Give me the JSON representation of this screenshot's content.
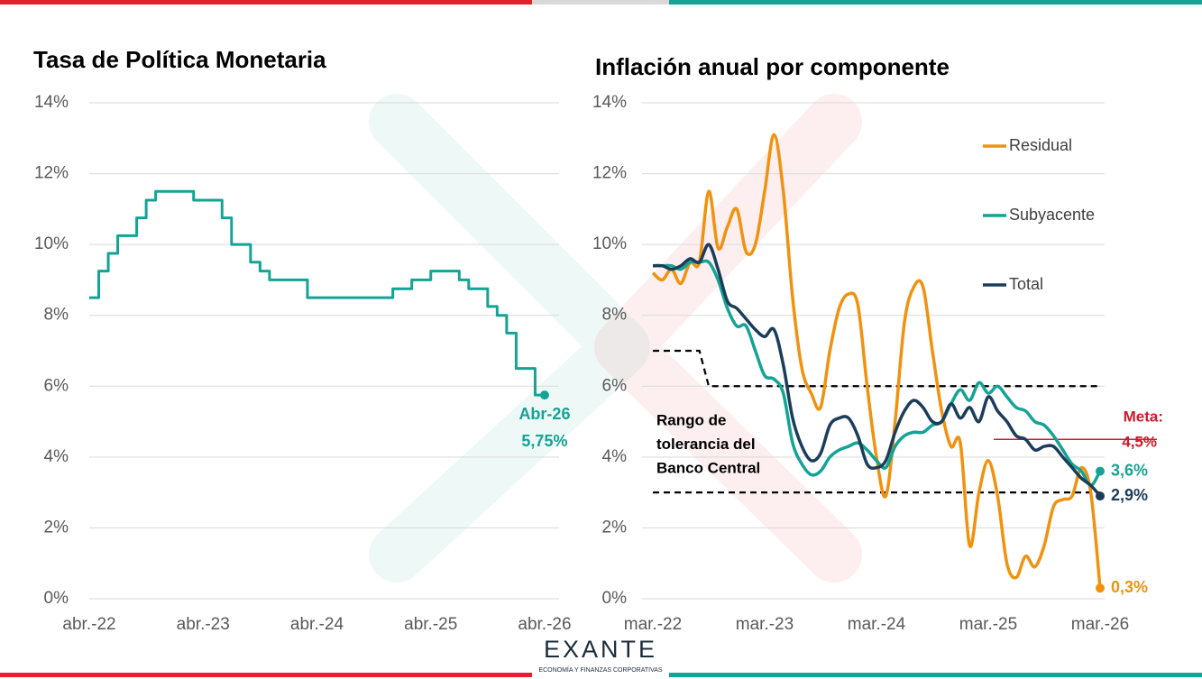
{
  "chart_data": [
    {
      "type": "line",
      "step": true,
      "title": "Tasa de Política Monetaria",
      "categories": [
        "abr.-22",
        null,
        null,
        null,
        null,
        null,
        null,
        null,
        null,
        null,
        null,
        null,
        "abr.-23",
        null,
        null,
        null,
        null,
        null,
        null,
        null,
        null,
        null,
        null,
        null,
        "abr.-24",
        null,
        null,
        null,
        null,
        null,
        null,
        null,
        null,
        null,
        null,
        null,
        "abr.-25",
        null,
        null,
        null,
        null,
        null,
        null,
        null,
        null,
        null,
        null,
        null,
        "abr.-26"
      ],
      "values": [
        8.5,
        9.25,
        9.75,
        10.25,
        10.25,
        10.75,
        11.25,
        11.5,
        11.5,
        11.5,
        11.5,
        11.25,
        11.25,
        11.25,
        10.75,
        10.0,
        10.0,
        9.5,
        9.25,
        9.0,
        9.0,
        9.0,
        9.0,
        8.5,
        8.5,
        8.5,
        8.5,
        8.5,
        8.5,
        8.5,
        8.5,
        8.5,
        8.75,
        8.75,
        9.0,
        9.0,
        9.25,
        9.25,
        9.25,
        9.0,
        8.75,
        8.75,
        8.25,
        8.0,
        7.5,
        6.5,
        6.5,
        5.75,
        5.75
      ],
      "value_labels": [
        null,
        null,
        null,
        null,
        null,
        null,
        null,
        null,
        null,
        null,
        null,
        null,
        null,
        null,
        null,
        null,
        null,
        null,
        null,
        null,
        null,
        null,
        null,
        null,
        null,
        null,
        null,
        null,
        null,
        null,
        null,
        null,
        null,
        null,
        null,
        null,
        null,
        null,
        null,
        null,
        null,
        null,
        null,
        null,
        null,
        null,
        null,
        null,
        "5,75%"
      ],
      "annotation": "Abr-26",
      "color": "#14a394",
      "ylim": [
        0,
        14
      ],
      "yticks": [
        {
          "value": 0,
          "label": "0%"
        },
        {
          "value": 2,
          "label": "2%"
        },
        {
          "value": 4,
          "label": "4%"
        },
        {
          "value": 6,
          "label": "6%"
        },
        {
          "value": 8,
          "label": "8%"
        },
        {
          "value": 10,
          "label": "10%"
        },
        {
          "value": 12,
          "label": "12%"
        },
        {
          "value": 14,
          "label": "14%"
        }
      ],
      "grid": true
    },
    {
      "type": "line",
      "title": "Inflación anual por componente",
      "categories": [
        "mar.-22",
        null,
        null,
        null,
        null,
        null,
        null,
        null,
        null,
        null,
        null,
        null,
        "mar.-23",
        null,
        null,
        null,
        null,
        null,
        null,
        null,
        null,
        null,
        null,
        null,
        "mar.-24",
        null,
        null,
        null,
        null,
        null,
        null,
        null,
        null,
        null,
        null,
        null,
        "mar.-25",
        null,
        null,
        null,
        null,
        null,
        null,
        null,
        null,
        null,
        null,
        null,
        "mar.-26"
      ],
      "series": [
        {
          "name": "Residual",
          "color": "#f0920f",
          "values": [
            9.2,
            9.0,
            9.3,
            8.9,
            9.5,
            9.5,
            11.5,
            9.9,
            10.5,
            11.0,
            9.8,
            10.0,
            11.5,
            13.1,
            11.5,
            8.5,
            6.5,
            5.8,
            5.4,
            7.0,
            8.2,
            8.6,
            8.3,
            6.0,
            4.0,
            2.9,
            5.0,
            7.8,
            8.8,
            8.8,
            7.0,
            5.3,
            4.3,
            4.4,
            1.5,
            3.0,
            3.9,
            2.9,
            1.0,
            0.6,
            1.2,
            0.9,
            1.5,
            2.6,
            2.8,
            2.9,
            3.7,
            3.0,
            0.3
          ],
          "value_labels": [
            null,
            null,
            null,
            null,
            null,
            null,
            null,
            null,
            null,
            null,
            null,
            null,
            null,
            null,
            null,
            null,
            null,
            null,
            null,
            null,
            null,
            null,
            null,
            null,
            null,
            null,
            null,
            null,
            null,
            null,
            null,
            null,
            null,
            null,
            null,
            null,
            null,
            null,
            null,
            null,
            null,
            null,
            null,
            null,
            null,
            null,
            null,
            null,
            "0,3%"
          ]
        },
        {
          "name": "Subyacente",
          "color": "#14a394",
          "values": [
            9.4,
            9.4,
            9.4,
            9.3,
            9.5,
            9.5,
            9.5,
            9.0,
            8.2,
            7.7,
            7.7,
            7.0,
            6.3,
            6.2,
            5.8,
            4.4,
            3.8,
            3.5,
            3.6,
            4.0,
            4.2,
            4.3,
            4.4,
            4.2,
            3.9,
            3.7,
            4.3,
            4.6,
            4.7,
            4.7,
            4.9,
            5.0,
            5.5,
            5.9,
            5.6,
            6.1,
            5.8,
            6.0,
            5.7,
            5.4,
            5.3,
            5.0,
            4.9,
            4.6,
            4.2,
            3.8,
            3.6,
            3.2,
            3.6
          ],
          "value_labels": [
            null,
            null,
            null,
            null,
            null,
            null,
            null,
            null,
            null,
            null,
            null,
            null,
            null,
            null,
            null,
            null,
            null,
            null,
            null,
            null,
            null,
            null,
            null,
            null,
            null,
            null,
            null,
            null,
            null,
            null,
            null,
            null,
            null,
            null,
            null,
            null,
            null,
            null,
            null,
            null,
            null,
            null,
            null,
            null,
            null,
            null,
            null,
            null,
            "3,6%"
          ]
        },
        {
          "name": "Total",
          "color": "#1c3d5a",
          "values": [
            9.4,
            9.4,
            9.3,
            9.4,
            9.6,
            9.5,
            10.0,
            9.3,
            8.4,
            8.2,
            7.9,
            7.6,
            7.4,
            7.6,
            6.6,
            5.1,
            4.3,
            3.9,
            4.1,
            4.9,
            5.1,
            5.1,
            4.6,
            3.8,
            3.7,
            3.9,
            4.7,
            5.3,
            5.6,
            5.4,
            5.0,
            5.0,
            5.5,
            5.1,
            5.4,
            5.0,
            5.7,
            5.3,
            5.0,
            4.6,
            4.5,
            4.2,
            4.3,
            4.3,
            4.0,
            3.7,
            3.4,
            3.2,
            2.9
          ],
          "value_labels": [
            null,
            null,
            null,
            null,
            null,
            null,
            null,
            null,
            null,
            null,
            null,
            null,
            null,
            null,
            null,
            null,
            null,
            null,
            null,
            null,
            null,
            null,
            null,
            null,
            null,
            null,
            null,
            null,
            null,
            null,
            null,
            null,
            null,
            null,
            null,
            null,
            null,
            null,
            null,
            null,
            null,
            null,
            null,
            null,
            null,
            null,
            null,
            null,
            "2,9%"
          ]
        }
      ],
      "tolerance": {
        "label": [
          "Rango de",
          "tolerancia del",
          "Banco Central"
        ],
        "upper": [
          7,
          7,
          7,
          7,
          7,
          7,
          6,
          6,
          6,
          6,
          6,
          6,
          6,
          6,
          6,
          6,
          6,
          6,
          6,
          6,
          6,
          6,
          6,
          6,
          6,
          6,
          6,
          6,
          6,
          6,
          6,
          6,
          6,
          6,
          6,
          6,
          6,
          6,
          6,
          6,
          6,
          6,
          6,
          6,
          6,
          6,
          6,
          6,
          6
        ],
        "lower": 3
      },
      "meta": {
        "label": "Meta:",
        "value": 4.5,
        "value_label": "4,5%",
        "color": "#d0192b"
      },
      "legend": "top-right",
      "ylim": [
        0,
        14
      ],
      "yticks": [
        {
          "value": 0,
          "label": "0%"
        },
        {
          "value": 2,
          "label": "2%"
        },
        {
          "value": 4,
          "label": "4%"
        },
        {
          "value": 6,
          "label": "6%"
        },
        {
          "value": 8,
          "label": "8%"
        },
        {
          "value": 10,
          "label": "10%"
        },
        {
          "value": 12,
          "label": "12%"
        },
        {
          "value": 14,
          "label": "14%"
        }
      ],
      "grid": true
    }
  ],
  "logo": {
    "name": "EXANTE",
    "tagline": "ECONOMÍA Y FINANZAS CORPORATIVAS"
  }
}
